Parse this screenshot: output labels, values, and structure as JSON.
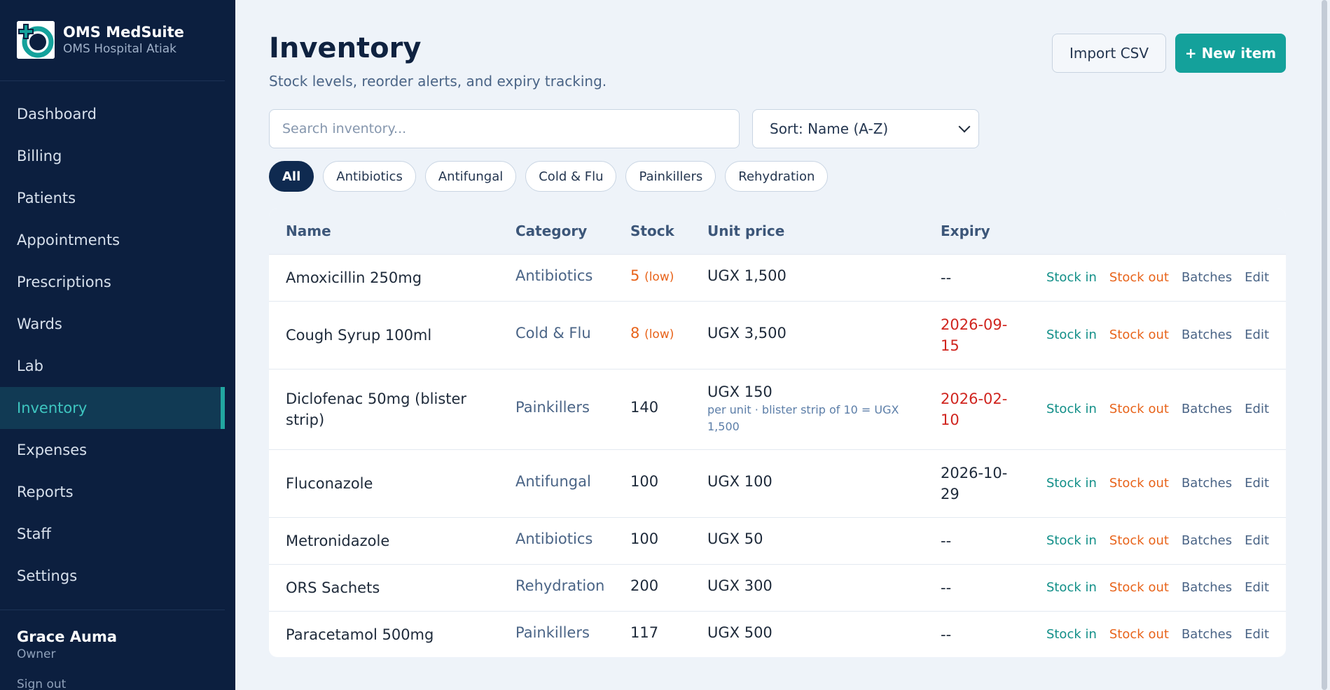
{
  "brand": {
    "name": "OMS MedSuite",
    "subtitle": "OMS Hospital Atiak"
  },
  "nav": [
    {
      "label": "Dashboard"
    },
    {
      "label": "Billing"
    },
    {
      "label": "Patients"
    },
    {
      "label": "Appointments"
    },
    {
      "label": "Prescriptions"
    },
    {
      "label": "Wards"
    },
    {
      "label": "Lab"
    },
    {
      "label": "Inventory",
      "active": true
    },
    {
      "label": "Expenses"
    },
    {
      "label": "Reports"
    },
    {
      "label": "Staff"
    },
    {
      "label": "Settings"
    }
  ],
  "user": {
    "name": "Grace Auma",
    "role": "Owner",
    "signout": "Sign out"
  },
  "header": {
    "title": "Inventory",
    "subtitle": "Stock levels, reorder alerts, and expiry tracking.",
    "import_label": "Import CSV",
    "new_label": "+ New item"
  },
  "search": {
    "placeholder": "Search inventory..."
  },
  "sort": {
    "selected": "Sort: Name (A-Z)"
  },
  "filters": [
    "All",
    "Antibiotics",
    "Antifungal",
    "Cold & Flu",
    "Painkillers",
    "Rehydration"
  ],
  "table": {
    "columns": {
      "name": "Name",
      "category": "Category",
      "stock": "Stock",
      "price": "Unit price",
      "expiry": "Expiry"
    },
    "actions": {
      "stock_in": "Stock in",
      "stock_out": "Stock out",
      "batches": "Batches",
      "edit": "Edit"
    },
    "rows": [
      {
        "name": "Amoxicillin 250mg",
        "category": "Antibiotics",
        "stock": "5",
        "low": "(low)",
        "price": "UGX 1,500",
        "price_note": "",
        "expiry": "--",
        "expiry_status": "none"
      },
      {
        "name": "Cough Syrup 100ml",
        "category": "Cold & Flu",
        "stock": "8",
        "low": "(low)",
        "price": "UGX 3,500",
        "price_note": "",
        "expiry": "2026-09-15",
        "expiry_status": "danger"
      },
      {
        "name": "Diclofenac 50mg (blister strip)",
        "category": "Painkillers",
        "stock": "140",
        "low": "",
        "price": "UGX 150",
        "price_note": "per unit · blister strip of 10 = UGX 1,500",
        "expiry": "2026-02-10",
        "expiry_status": "danger"
      },
      {
        "name": "Fluconazole",
        "category": "Antifungal",
        "stock": "100",
        "low": "",
        "price": "UGX 100",
        "price_note": "",
        "expiry": "2026-10-29",
        "expiry_status": "ok"
      },
      {
        "name": "Metronidazole",
        "category": "Antibiotics",
        "stock": "100",
        "low": "",
        "price": "UGX 50",
        "price_note": "",
        "expiry": "--",
        "expiry_status": "none"
      },
      {
        "name": "ORS Sachets",
        "category": "Rehydration",
        "stock": "200",
        "low": "",
        "price": "UGX 300",
        "price_note": "",
        "expiry": "--",
        "expiry_status": "none"
      },
      {
        "name": "Paracetamol 500mg",
        "category": "Painkillers",
        "stock": "117",
        "low": "",
        "price": "UGX 500",
        "price_note": "",
        "expiry": "--",
        "expiry_status": "none"
      }
    ]
  },
  "colors": {
    "sidebar": "#0c1f3f",
    "accent": "#14a19b",
    "low": "#e8641b",
    "danger": "#d0251f"
  }
}
